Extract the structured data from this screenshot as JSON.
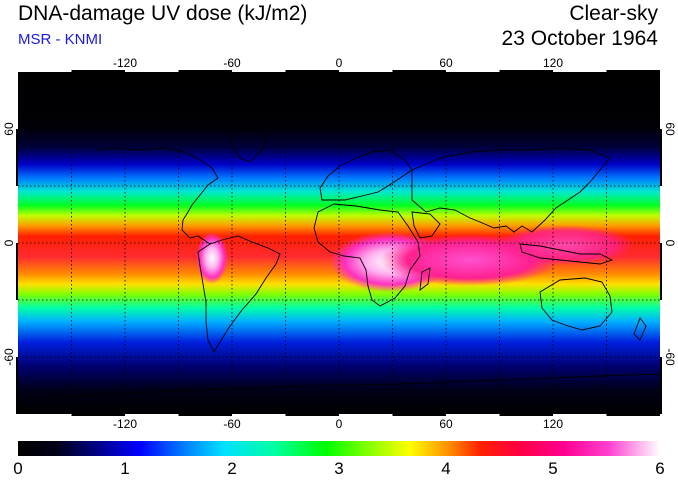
{
  "header": {
    "title": "DNA-damage UV dose (kJ/m2)",
    "source": "MSR - KNMI",
    "product": "Clear-sky",
    "date": "23 October 1964"
  },
  "map": {
    "lon_labels": [
      "-120",
      "-60",
      "0",
      "60",
      "120"
    ],
    "lat_labels_left": [
      "60",
      "0",
      "-60"
    ],
    "lat_labels_right": [
      "60",
      "0",
      "-60"
    ],
    "gridlines_lon": [
      -150,
      -120,
      -90,
      -60,
      -30,
      0,
      30,
      60,
      90,
      120,
      150
    ],
    "gridlines_lat": [
      60,
      30,
      0,
      -30,
      -60
    ],
    "colors": {
      "background": "#000000",
      "coastline": "#000000",
      "grid": "#000000"
    }
  },
  "colorbar": {
    "min": 0,
    "max": 6,
    "tick_labels": [
      "0",
      "1",
      "2",
      "3",
      "4",
      "5",
      "6"
    ]
  }
}
